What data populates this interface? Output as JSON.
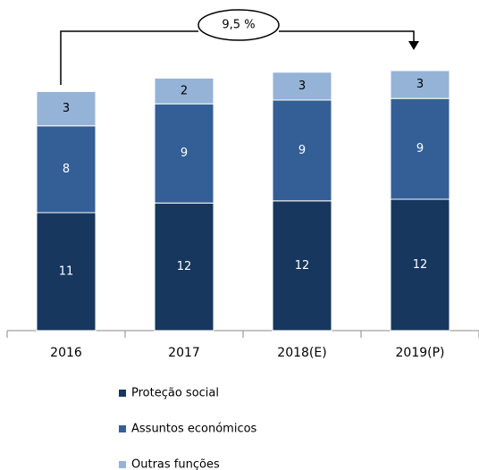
{
  "chart_data": {
    "type": "stacked-bar",
    "categories": [
      "2016",
      "2017",
      "2018(E)",
      "2019(P)"
    ],
    "series": [
      {
        "name": "Proteção social",
        "color": "#17375e",
        "values": [
          11.0,
          11.9,
          12.1,
          12.25
        ],
        "value_labels": [
          "11",
          "12",
          "12",
          "12"
        ]
      },
      {
        "name": "Assuntos económicos",
        "color": "#335f96",
        "values": [
          8.1,
          9.25,
          9.4,
          9.4
        ],
        "value_labels": [
          "8",
          "9",
          "9",
          "9"
        ]
      },
      {
        "name": "Outras funções",
        "color": "#95b3d7",
        "values": [
          3.2,
          2.4,
          2.6,
          2.6
        ],
        "value_labels": [
          "3",
          "2",
          "3",
          "3"
        ]
      }
    ],
    "ylim": [
      0,
      25
    ],
    "annotation": "9,5 %"
  }
}
